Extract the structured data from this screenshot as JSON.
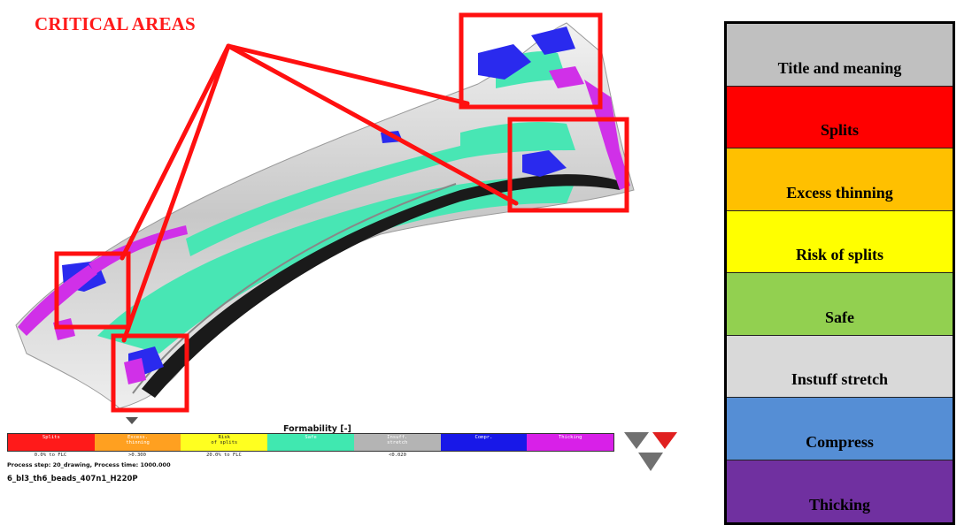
{
  "figure_title": "CRITICAL AREAS",
  "legend": {
    "rows": [
      {
        "label": "Title and meaning",
        "color": "#c0c0c0"
      },
      {
        "label": "Splits",
        "color": "#ff0000"
      },
      {
        "label": "Excess thinning",
        "color": "#ffc000"
      },
      {
        "label": "Risk of splits",
        "color": "#ffff00"
      },
      {
        "label": "Safe",
        "color": "#92d050"
      },
      {
        "label": "Instuff stretch",
        "color": "#d9d9d9"
      },
      {
        "label": "Compress",
        "color": "#558ed5"
      },
      {
        "label": "Thicking",
        "color": "#7030a0"
      }
    ]
  },
  "formability": {
    "title": "Formability [-]",
    "segments": [
      {
        "label": "Splits",
        "color": "#ff1a1a",
        "dark": false
      },
      {
        "label": "Excess.\nthinning",
        "color": "#ffa020",
        "dark": false
      },
      {
        "label": "Risk\nof splits",
        "color": "#ffff20",
        "dark": true
      },
      {
        "label": "Safe",
        "color": "#40e8b0",
        "dark": false
      },
      {
        "label": "Insuff.\nstretch",
        "color": "#b4b4b4",
        "dark": false
      },
      {
        "label": "Compr.",
        "color": "#1818e8",
        "dark": false
      },
      {
        "label": "Thicking",
        "color": "#d820e8",
        "dark": false
      }
    ],
    "values": [
      "0.0% to FLC",
      ">0.300",
      "20.0% to FLC",
      "",
      "<0.020",
      "",
      ""
    ],
    "process_step": "Process step: 20_drawing, Process time: 1000.000",
    "filename": "6_bl3_th6_beads_407n1_H220P"
  }
}
